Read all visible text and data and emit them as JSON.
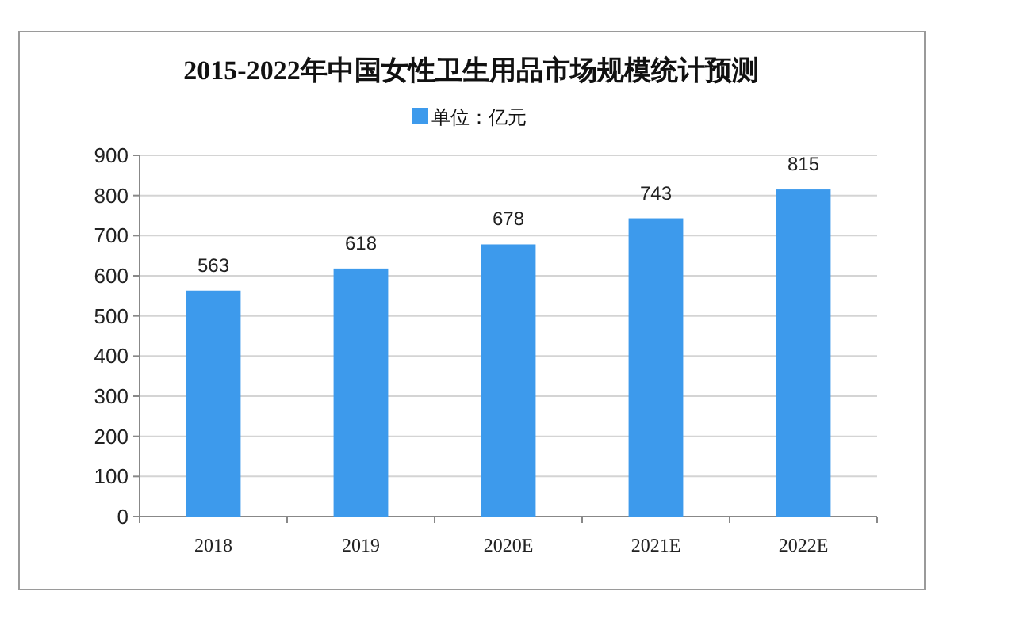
{
  "chart_data": {
    "type": "bar",
    "title": "2015-2022年中国女性卫生用品市场规模统计预测",
    "categories": [
      "2018",
      "2019",
      "2020E",
      "2021E",
      "2022E"
    ],
    "series": [
      {
        "name": "单位：亿元",
        "color": "#3d9aec",
        "values": [
          563,
          618,
          678,
          743,
          815
        ]
      }
    ],
    "ylim": [
      0,
      900
    ],
    "yticks": [
      0,
      100,
      200,
      300,
      400,
      500,
      600,
      700,
      800,
      900
    ],
    "grid": "y",
    "legend": "top",
    "data_labels": true
  }
}
